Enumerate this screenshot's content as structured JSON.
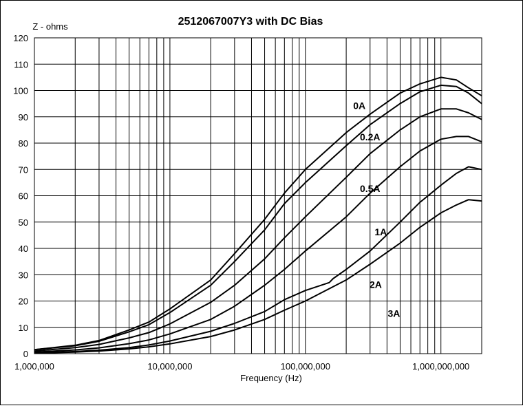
{
  "chart_data": {
    "type": "line",
    "title": "2512067007Y3 with DC Bias",
    "xlabel": "Frequency (Hz)",
    "ylabel": "Z - ohms",
    "xscale": "log",
    "xlim": [
      1000000,
      2000000000
    ],
    "ylim": [
      0,
      120
    ],
    "grid": true,
    "legend": "none",
    "yticks": [
      0,
      10,
      20,
      30,
      40,
      50,
      60,
      70,
      80,
      90,
      100,
      110,
      120
    ],
    "xticks": [
      {
        "value": 1000000,
        "label": "1,000,000"
      },
      {
        "value": 10000000,
        "label": "10,000,000"
      },
      {
        "value": 100000000,
        "label": "100,000,000"
      },
      {
        "value": 1000000000,
        "label": "1,000,000,000"
      }
    ],
    "series": [
      {
        "name": "0A",
        "label": "0A",
        "label_at": [
          2500000000,
          93
        ],
        "x": [
          1000000,
          2000000,
          3000000,
          5000000,
          7000000,
          10000000,
          20000000,
          30000000,
          50000000,
          70000000,
          100000000,
          200000000,
          300000000,
          500000000,
          700000000,
          1000000000,
          1300000000,
          1600000000,
          2000000000
        ],
        "y": [
          1.5,
          3.2,
          5,
          9,
          12,
          17,
          28,
          38,
          51,
          61,
          70,
          84,
          91,
          99,
          102.5,
          105,
          104,
          101,
          98
        ]
      },
      {
        "name": "0.2A",
        "label": "0.2A",
        "label_at": [
          3000000000,
          81
        ],
        "x": [
          1000000,
          2000000,
          3000000,
          5000000,
          7000000,
          10000000,
          20000000,
          30000000,
          50000000,
          70000000,
          100000000,
          200000000,
          300000000,
          500000000,
          700000000,
          1000000000,
          1300000000,
          1600000000,
          2000000000
        ],
        "y": [
          1.5,
          3,
          4.7,
          8.3,
          11,
          15.6,
          26,
          35,
          47,
          57,
          65,
          79,
          87,
          95,
          99.5,
          102,
          101.5,
          99,
          95
        ]
      },
      {
        "name": "0.5A",
        "label": "0.5A",
        "label_at": [
          3000000000,
          61.5
        ],
        "x": [
          1000000,
          2000000,
          3000000,
          5000000,
          7000000,
          10000000,
          20000000,
          30000000,
          50000000,
          70000000,
          100000000,
          200000000,
          300000000,
          500000000,
          700000000,
          1000000000,
          1300000000,
          1600000000,
          2000000000
        ],
        "y": [
          1,
          2.3,
          3.5,
          6,
          8,
          11.3,
          19.5,
          26,
          36,
          44,
          52,
          67,
          76,
          85,
          90,
          93,
          93,
          91.5,
          89
        ]
      },
      {
        "name": "1A",
        "label": "1A",
        "label_at": [
          3600000000,
          45
        ],
        "x": [
          1000000,
          2000000,
          3000000,
          5000000,
          7000000,
          10000000,
          20000000,
          30000000,
          50000000,
          70000000,
          100000000,
          200000000,
          300000000,
          500000000,
          700000000,
          1000000000,
          1300000000,
          1600000000,
          2000000000
        ],
        "y": [
          0.6,
          1.4,
          2.2,
          3.8,
          5.2,
          7.5,
          13,
          18,
          26,
          32,
          39,
          52,
          61,
          71,
          77,
          81.5,
          82.5,
          82.5,
          80.5
        ]
      },
      {
        "name": "2A",
        "label": "2A",
        "label_at": [
          3300000000,
          25
        ],
        "x": [
          1000000,
          2000000,
          3000000,
          5000000,
          7000000,
          10000000,
          20000000,
          30000000,
          50000000,
          70000000,
          100000000,
          150000000,
          160000000,
          200000000,
          300000000,
          500000000,
          700000000,
          1000000000,
          1300000000,
          1600000000,
          2000000000
        ],
        "y": [
          0.3,
          0.8,
          1.3,
          2.3,
          3.3,
          4.8,
          8.5,
          11.5,
          16,
          20.5,
          24,
          27,
          28.5,
          32,
          39,
          50,
          57.5,
          64,
          68.5,
          71,
          70
        ]
      },
      {
        "name": "3A",
        "label": "3A",
        "label_at": [
          4500000000,
          14
        ],
        "x": [
          1000000,
          2000000,
          3000000,
          5000000,
          7000000,
          10000000,
          20000000,
          30000000,
          50000000,
          70000000,
          100000000,
          200000000,
          300000000,
          500000000,
          700000000,
          1000000000,
          1300000000,
          1600000000,
          2000000000
        ],
        "y": [
          0.2,
          0.6,
          1,
          1.8,
          2.6,
          3.7,
          6.5,
          9,
          13,
          16.5,
          20,
          28,
          34,
          42,
          48,
          53.5,
          56.5,
          58.5,
          58
        ]
      }
    ]
  }
}
